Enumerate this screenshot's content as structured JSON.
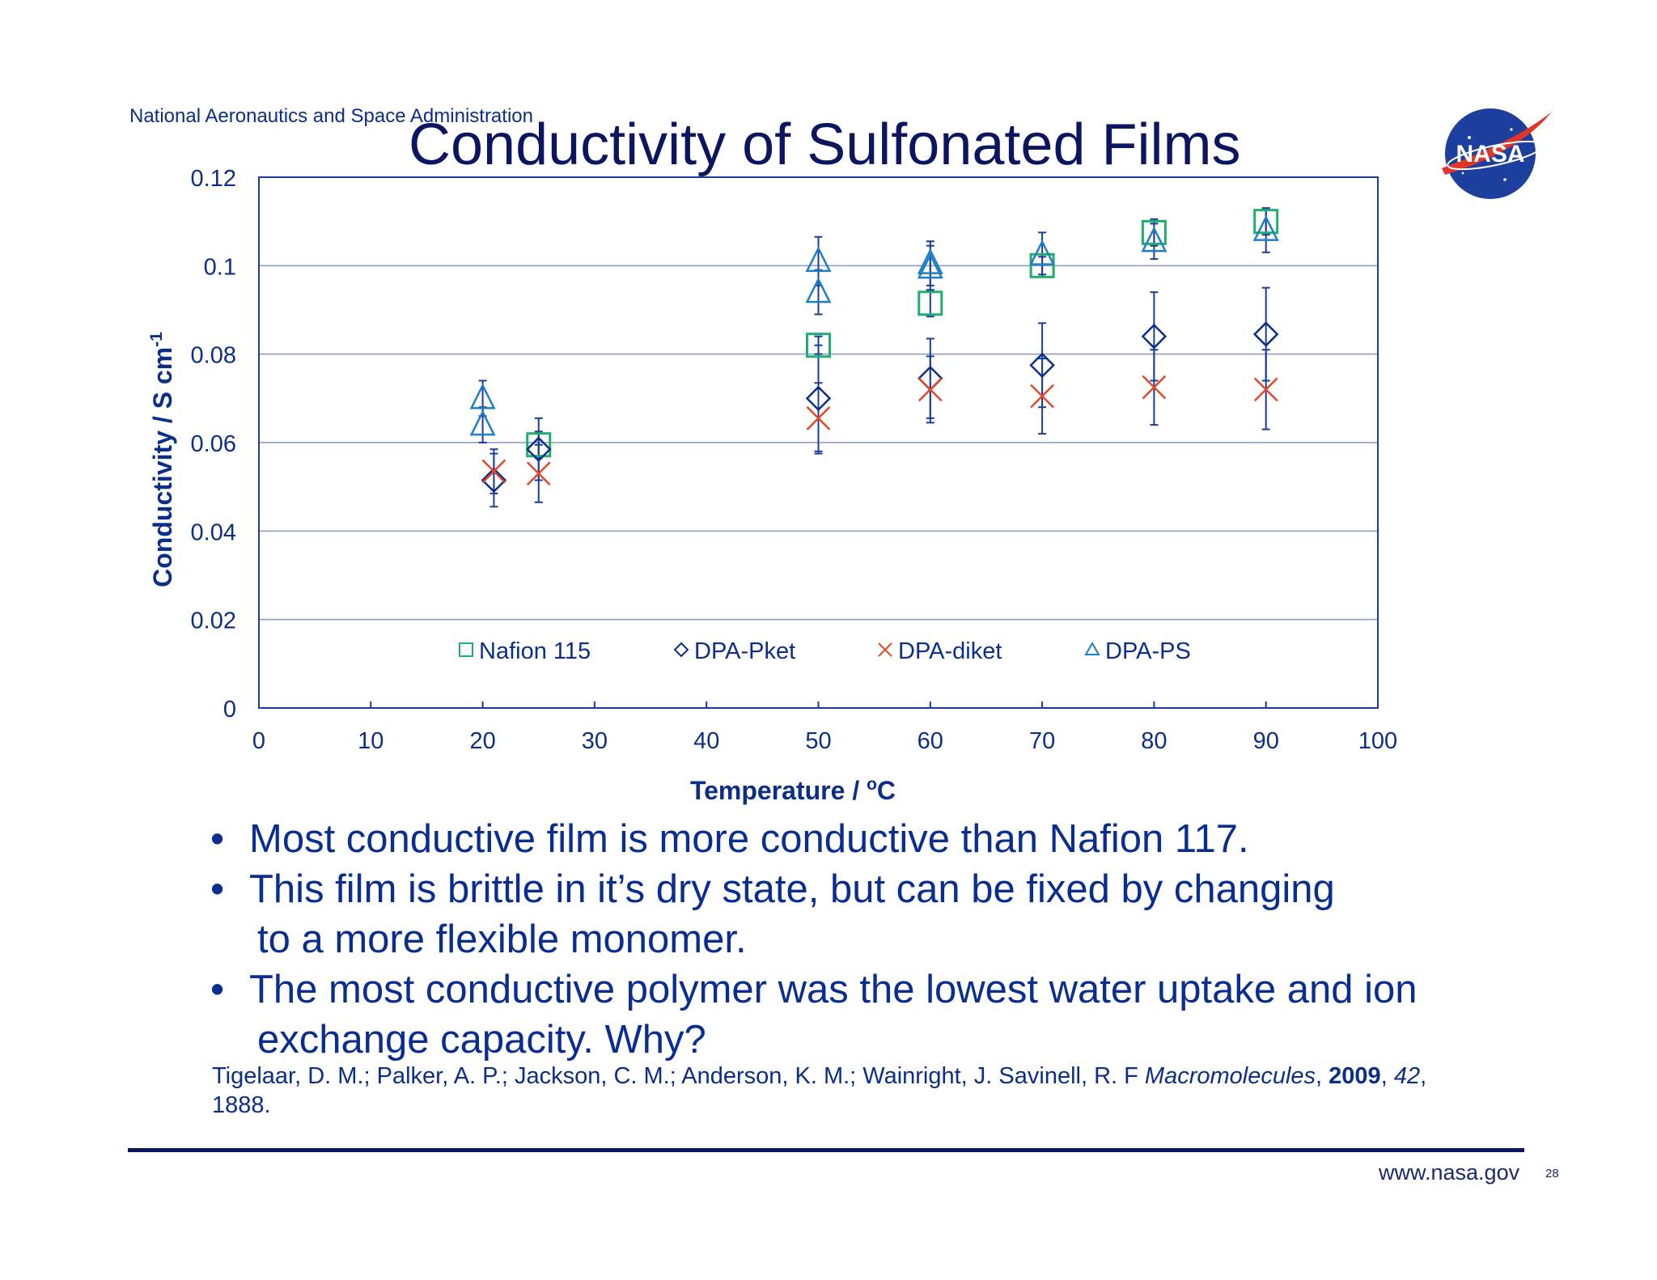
{
  "header": {
    "agency": "National Aeronautics and Space Administration",
    "title": "Conductivity of Sulfonated Films",
    "logo_text": "NASA"
  },
  "chart_data": {
    "type": "scatter",
    "xlabel": "Temperature / ",
    "xlabel_sup": "o",
    "xlabel_tail": "C",
    "ylabel": "Conductivity / S cm",
    "ylabel_sup": "-1",
    "xlim": [
      0,
      100
    ],
    "ylim": [
      0,
      0.12
    ],
    "xticks": [
      0,
      10,
      20,
      30,
      40,
      50,
      60,
      70,
      80,
      90,
      100
    ],
    "yticks": [
      0,
      0.02,
      0.04,
      0.06,
      0.08,
      0.1,
      0.12
    ],
    "ytick_labels": [
      "0",
      "0.02",
      "0.04",
      "0.06",
      "0.08",
      "0.1",
      "0.12"
    ],
    "grid": "horizontal",
    "legend_position": "bottom-inside",
    "series": [
      {
        "name": "Nafion 115",
        "marker": "square",
        "color": "#1fae6e",
        "points": [
          {
            "x": 25,
            "y": 0.0595,
            "err": 0.003
          },
          {
            "x": 50,
            "y": 0.082,
            "err": 0.002
          },
          {
            "x": 60,
            "y": 0.0915,
            "err": 0.003
          },
          {
            "x": 70,
            "y": 0.1,
            "err": 0.002
          },
          {
            "x": 80,
            "y": 0.1075,
            "err": 0.003
          },
          {
            "x": 90,
            "y": 0.11,
            "err": 0.003
          }
        ]
      },
      {
        "name": "DPA-Pket",
        "marker": "diamond",
        "color": "#0b2f88",
        "points": [
          {
            "x": 21,
            "y": 0.0515,
            "err": 0.006
          },
          {
            "x": 25,
            "y": 0.0585,
            "err": 0.007
          },
          {
            "x": 50,
            "y": 0.07,
            "err": 0.012
          },
          {
            "x": 60,
            "y": 0.0745,
            "err": 0.009
          },
          {
            "x": 70,
            "y": 0.0775,
            "err": 0.0095
          },
          {
            "x": 80,
            "y": 0.084,
            "err": 0.01
          },
          {
            "x": 90,
            "y": 0.0845,
            "err": 0.0105
          }
        ]
      },
      {
        "name": "DPA-diket",
        "marker": "x",
        "color": "#e04a2a",
        "points": [
          {
            "x": 21,
            "y": 0.0535,
            "err": 0.005
          },
          {
            "x": 25,
            "y": 0.053,
            "err": 0.0065
          },
          {
            "x": 50,
            "y": 0.0655,
            "err": 0.008
          },
          {
            "x": 60,
            "y": 0.072,
            "err": 0.0075
          },
          {
            "x": 70,
            "y": 0.0705,
            "err": 0.0085
          },
          {
            "x": 80,
            "y": 0.0725,
            "err": 0.0085
          },
          {
            "x": 90,
            "y": 0.072,
            "err": 0.009
          }
        ]
      },
      {
        "name": "DPA-PS",
        "marker": "triangle",
        "color": "#1f7fc4",
        "points": [
          {
            "x": 20,
            "y": 0.07,
            "err": 0.004
          },
          {
            "x": 20,
            "y": 0.064,
            "err": 0.004
          },
          {
            "x": 50,
            "y": 0.101,
            "err": 0.0055
          },
          {
            "x": 50,
            "y": 0.094,
            "err": 0.005
          },
          {
            "x": 60,
            "y": 0.1005,
            "err": 0.005
          },
          {
            "x": 60,
            "y": 0.0995,
            "err": 0.005
          },
          {
            "x": 70,
            "y": 0.1025,
            "err": 0.005
          },
          {
            "x": 80,
            "y": 0.1055,
            "err": 0.004
          },
          {
            "x": 90,
            "y": 0.108,
            "err": 0.005
          }
        ]
      }
    ]
  },
  "bullets": [
    {
      "dot": "•",
      "text": "Most conductive film is more conductive than Nafion 117."
    },
    {
      "dot": "•",
      "text": "This film is brittle in it’s dry state, but can be fixed by changing",
      "cont": "to a more flexible monomer."
    },
    {
      "dot": "•",
      "text": "The most conductive polymer was the lowest water uptake and ion",
      "cont": "exchange capacity.  Why?"
    }
  ],
  "reference": {
    "authors": "Tigelaar, D. M.; Palker, A. P.; Jackson, C. M.; Anderson, K. M.; Wainright, J. Savinell, R. F ",
    "journal": "Macromolecules",
    "sep1": ", ",
    "year": "2009",
    "sep2": ", ",
    "volume": "42",
    "sep3": ",",
    "pages": "1888."
  },
  "footer": {
    "url": "www.nasa.gov",
    "page": "28"
  }
}
